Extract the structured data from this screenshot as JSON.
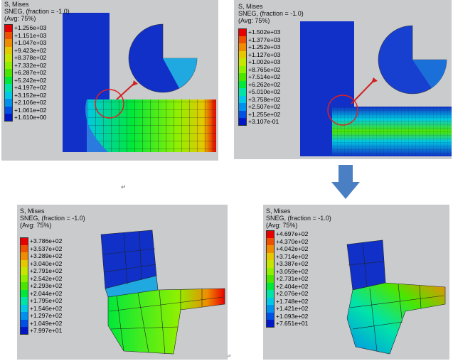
{
  "panels": [
    {
      "title": "S, Mises",
      "subtitle": "SNEG, (fraction = -1.0)",
      "avg": "(Avg: 75%)",
      "legend": [
        {
          "value": "+1.256e+03",
          "color": "#e80000"
        },
        {
          "value": "+1.151e+03",
          "color": "#ee5200"
        },
        {
          "value": "+1.047e+03",
          "color": "#f08c00"
        },
        {
          "value": "+9.423e+02",
          "color": "#e6c800"
        },
        {
          "value": "+8.378e+02",
          "color": "#c4e600"
        },
        {
          "value": "+7.332e+02",
          "color": "#8ef000"
        },
        {
          "value": "+6.287e+02",
          "color": "#4ae600"
        },
        {
          "value": "+5.242e+02",
          "color": "#00e83a"
        },
        {
          "value": "+4.197e+02",
          "color": "#00e4a8"
        },
        {
          "value": "+3.152e+02",
          "color": "#00c8e6"
        },
        {
          "value": "+2.106e+02",
          "color": "#0090ee"
        },
        {
          "value": "+1.061e+02",
          "color": "#0050e6"
        },
        {
          "value": "+1.610e+00",
          "color": "#0018c8"
        }
      ]
    },
    {
      "title": "S, Mises",
      "subtitle": "SNEG, (fraction = -1.0)",
      "avg": "(Avg: 75%)",
      "legend": [
        {
          "value": "+1.502e+03",
          "color": "#e80000"
        },
        {
          "value": "+1.377e+03",
          "color": "#ee5200"
        },
        {
          "value": "+1.252e+03",
          "color": "#f08c00"
        },
        {
          "value": "+1.127e+03",
          "color": "#e6c800"
        },
        {
          "value": "+1.002e+03",
          "color": "#c4e600"
        },
        {
          "value": "+8.765e+02",
          "color": "#8ef000"
        },
        {
          "value": "+7.514e+02",
          "color": "#4ae600"
        },
        {
          "value": "+6.262e+02",
          "color": "#00e83a"
        },
        {
          "value": "+5.010e+02",
          "color": "#00e4a8"
        },
        {
          "value": "+3.758e+02",
          "color": "#00c8e6"
        },
        {
          "value": "+2.507e+02",
          "color": "#0090ee"
        },
        {
          "value": "+1.255e+02",
          "color": "#0050e6"
        },
        {
          "value": "+3.107e-01",
          "color": "#0018c8"
        }
      ]
    },
    {
      "title": "S, Mises",
      "subtitle": "SNEG, (fraction = -1.0)",
      "avg": "(Avg: 75%)",
      "legend": [
        {
          "value": "+3.786e+02",
          "color": "#e80000"
        },
        {
          "value": "+3.537e+02",
          "color": "#ee5200"
        },
        {
          "value": "+3.289e+02",
          "color": "#f08c00"
        },
        {
          "value": "+3.040e+02",
          "color": "#e6c800"
        },
        {
          "value": "+2.791e+02",
          "color": "#c4e600"
        },
        {
          "value": "+2.542e+02",
          "color": "#8ef000"
        },
        {
          "value": "+2.293e+02",
          "color": "#4ae600"
        },
        {
          "value": "+2.044e+02",
          "color": "#00e83a"
        },
        {
          "value": "+1.795e+02",
          "color": "#00e4a8"
        },
        {
          "value": "+1.546e+02",
          "color": "#00c8e6"
        },
        {
          "value": "+1.297e+02",
          "color": "#0090ee"
        },
        {
          "value": "+1.049e+02",
          "color": "#0050e6"
        },
        {
          "value": "+7.997e+01",
          "color": "#0018c8"
        }
      ]
    },
    {
      "title": "S, Mises",
      "subtitle": "SNEG, (fraction = -1.0)",
      "avg": "(Avg: 75%)",
      "legend": [
        {
          "value": "+4.697e+02",
          "color": "#e80000"
        },
        {
          "value": "+4.370e+02",
          "color": "#ee5200"
        },
        {
          "value": "+4.042e+02",
          "color": "#f08c00"
        },
        {
          "value": "+3.714e+02",
          "color": "#e6c800"
        },
        {
          "value": "+3.387e+02",
          "color": "#c4e600"
        },
        {
          "value": "+3.059e+02",
          "color": "#8ef000"
        },
        {
          "value": "+2.731e+02",
          "color": "#4ae600"
        },
        {
          "value": "+2.404e+02",
          "color": "#00e83a"
        },
        {
          "value": "+2.076e+02",
          "color": "#00e4a8"
        },
        {
          "value": "+1.748e+02",
          "color": "#00c8e6"
        },
        {
          "value": "+1.421e+02",
          "color": "#0090ee"
        },
        {
          "value": "+1.093e+02",
          "color": "#0050e6"
        },
        {
          "value": "+7.651e+01",
          "color": "#0018c8"
        }
      ]
    }
  ],
  "colors": {
    "panel_bg": "#c9cbcd",
    "arrow": "#4a7fc4",
    "highlight": "#e02020"
  },
  "icons": [
    "down-arrow-icon",
    "return-mark-icon"
  ],
  "marks": {
    "return": "↵"
  }
}
